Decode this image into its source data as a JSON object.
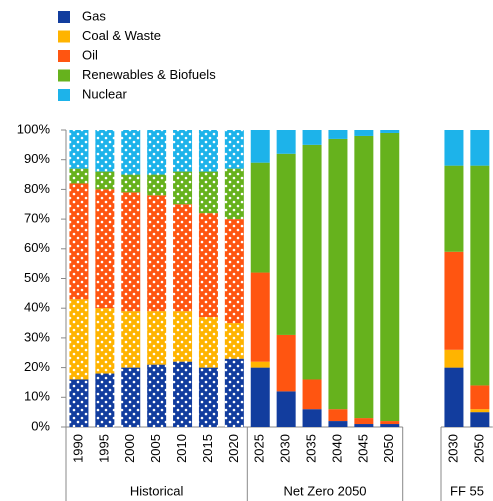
{
  "chart_data": {
    "type": "stacked_bar",
    "groups": [
      {
        "name": "Historical",
        "pattern": "dots",
        "categories": [
          "1990",
          "1995",
          "2000",
          "2005",
          "2010",
          "2015",
          "2020"
        ]
      },
      {
        "name": "Net Zero 2050",
        "categories": [
          "2025",
          "2030",
          "2035",
          "2040",
          "2045",
          "2050"
        ]
      },
      {
        "name": "FF 55",
        "categories": [
          "2030",
          "2050"
        ]
      }
    ],
    "series": [
      {
        "name": "Gas",
        "color": "#123d9e",
        "values": [
          16,
          18,
          20,
          21,
          22,
          20,
          23,
          20,
          12,
          6,
          2,
          1,
          1,
          20,
          5
        ]
      },
      {
        "name": "Coal & Waste",
        "color": "#ffb400",
        "values": [
          27,
          22,
          19,
          18,
          17,
          17,
          12,
          2,
          0,
          0,
          0,
          0,
          0,
          6,
          1
        ]
      },
      {
        "name": "Oil",
        "color": "#ff5511",
        "values": [
          39,
          40,
          40,
          39,
          36,
          35,
          35,
          30,
          19,
          10,
          4,
          2,
          1,
          33,
          8
        ]
      },
      {
        "name": "Renewables & Biofuels",
        "color": "#66b21d",
        "values": [
          5,
          6,
          6,
          7,
          11,
          14,
          17,
          37,
          61,
          79,
          91,
          95,
          97,
          29,
          74
        ]
      },
      {
        "name": "Nuclear",
        "color": "#1db3ea",
        "values": [
          13,
          14,
          15,
          15,
          14,
          14,
          13,
          11,
          8,
          5,
          3,
          2,
          1,
          12,
          12
        ]
      }
    ],
    "ylim": [
      0,
      100
    ],
    "yticks": [
      {
        "value": 0,
        "label": "0%"
      },
      {
        "value": 10,
        "label": "10%"
      },
      {
        "value": 20,
        "label": "20%"
      },
      {
        "value": 30,
        "label": "30%"
      },
      {
        "value": 40,
        "label": "40%"
      },
      {
        "value": 50,
        "label": "50%"
      },
      {
        "value": 60,
        "label": "60%"
      },
      {
        "value": 70,
        "label": "70%"
      },
      {
        "value": 80,
        "label": "80%"
      },
      {
        "value": 90,
        "label": "90%"
      },
      {
        "value": 100,
        "label": "100%"
      }
    ]
  }
}
